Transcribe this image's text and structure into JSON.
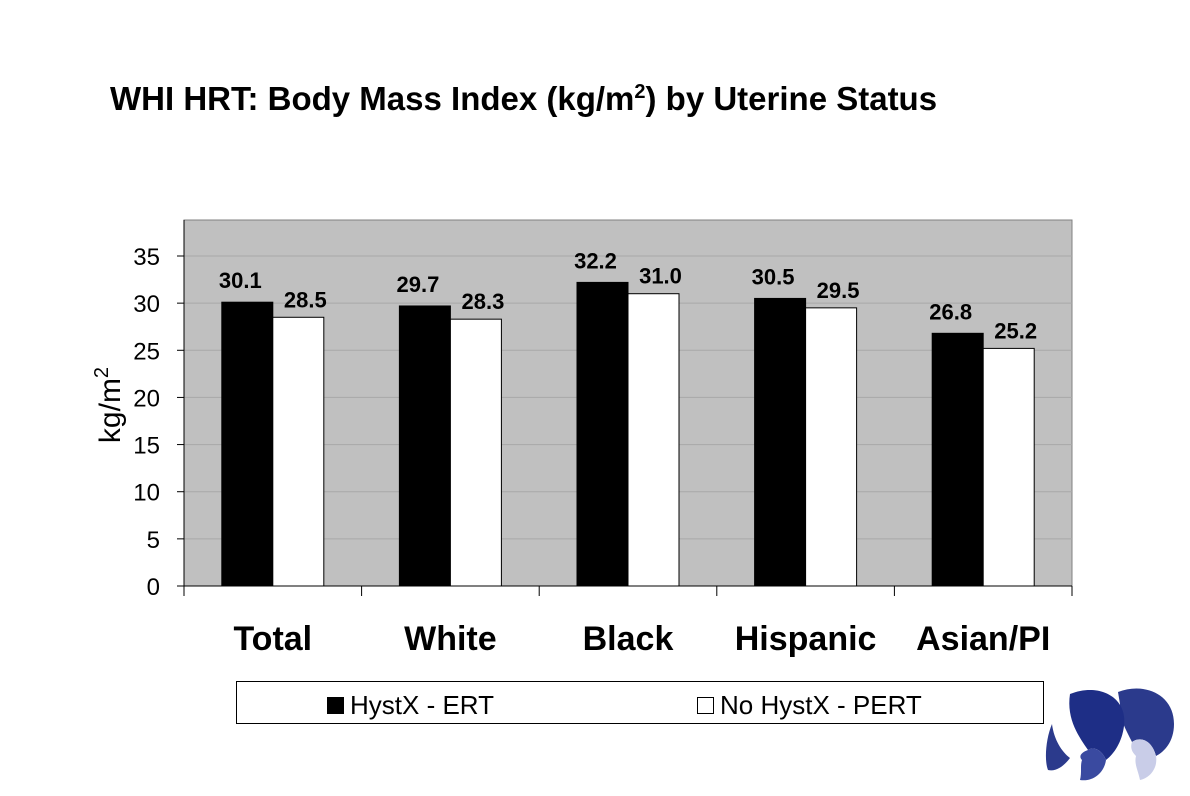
{
  "title_prefix": "WHI HRT: Body Mass Index (kg/m",
  "title_sup": "2",
  "title_suffix": ") by Uterine Status",
  "chart_data": {
    "type": "bar",
    "ylabel": "kg/m",
    "ylabel_sup": "2",
    "ylim": [
      0,
      38
    ],
    "yticks": [
      0,
      5,
      10,
      15,
      20,
      25,
      30,
      35
    ],
    "categories": [
      "Total",
      "White",
      "Black",
      "Hispanic",
      "Asian/PI"
    ],
    "series": [
      {
        "name": "HystX - ERT",
        "color": "#000000",
        "values": [
          30.1,
          29.7,
          32.2,
          30.5,
          26.8
        ],
        "labels": [
          "30.1",
          "29.7",
          "32.2",
          "30.5",
          "26.8"
        ]
      },
      {
        "name": "No HystX - PERT",
        "color": "#ffffff",
        "values": [
          28.5,
          28.3,
          31.0,
          29.5,
          25.2
        ],
        "labels": [
          "28.5",
          "28.3",
          "31.0",
          "29.5",
          "25.2"
        ]
      }
    ],
    "plot_background": "#c0c0c0",
    "grid": true,
    "legend_position": "bottom"
  }
}
